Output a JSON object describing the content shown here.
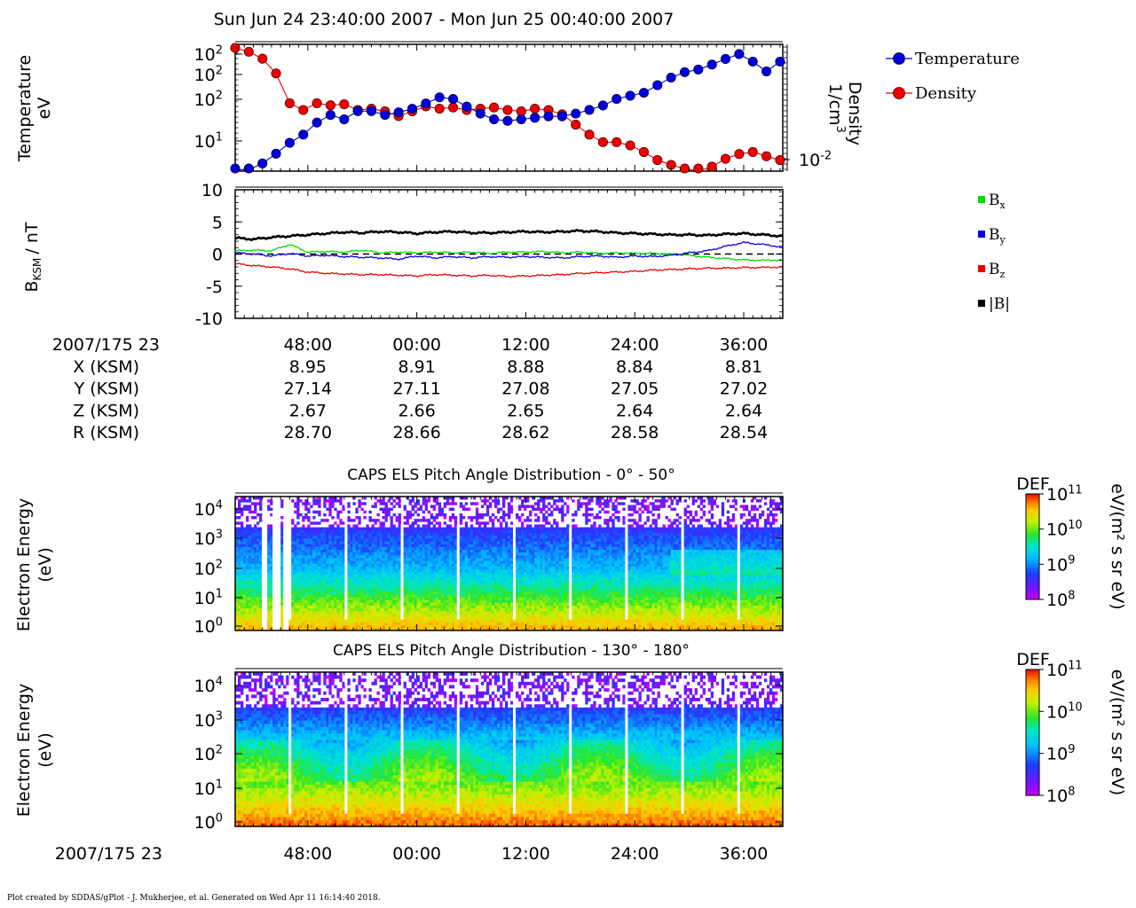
{
  "title": "Sun Jun 24 23:40:00 2007 - Mon Jun 25 00:40:00 2007",
  "footer": "Plot created by SDDAS/gPlot - J. Mukherjee, et al.  Generated on Wed Apr 11 16:14:40 2018.",
  "colors": {
    "temperature": "#0000dd",
    "density": "#ee0000",
    "bx": "#00dd00",
    "by": "#0000ee",
    "bz": "#ee0000",
    "btot": "#000000"
  },
  "ephemeris": {
    "start_label": "2007/175 23",
    "rows": [
      {
        "label": "X (KSM)",
        "values": [
          "8.95",
          "8.91",
          "8.88",
          "8.84",
          "8.81"
        ]
      },
      {
        "label": "Y (KSM)",
        "values": [
          "27.14",
          "27.11",
          "27.08",
          "27.05",
          "27.02"
        ]
      },
      {
        "label": "Z (KSM)",
        "values": [
          "2.67",
          "2.66",
          "2.65",
          "2.64",
          "2.64"
        ]
      },
      {
        "label": "R (KSM)",
        "values": [
          "28.70",
          "28.66",
          "28.62",
          "28.58",
          "28.54"
        ]
      }
    ]
  },
  "bottom_axis": {
    "start_label": "2007/175 23"
  },
  "chart_data": [
    {
      "type": "line",
      "title": "",
      "ylabel": "Temperature",
      "ylabel_unit": "eV",
      "y2label": "Density",
      "y2label_unit": "1/cm",
      "y2label_unit_exp": "3",
      "yscale": "log",
      "y_ticks": [
        {
          "base": "10",
          "exp": "2"
        },
        {
          "base": "10",
          "exp": "2"
        },
        {
          "base": "10",
          "exp": "2"
        },
        {
          "base": "10",
          "exp": "1"
        }
      ],
      "y2_ticks": [
        {
          "base": "10",
          "exp": "-2"
        }
      ],
      "x_ticks": [
        "48:00",
        "00:00",
        "12:00",
        "24:00",
        "36:00"
      ],
      "x_range_minutes": [
        40,
        100.3
      ],
      "legend_position": "right",
      "series": [
        {
          "name": "Temperature",
          "x_minutes": [
            40,
            41.5,
            43,
            44.5,
            46,
            47.5,
            49,
            50.5,
            52,
            53.5,
            55,
            56.5,
            58,
            59.5,
            61,
            62.5,
            64,
            65.5,
            67,
            68.5,
            70,
            71.5,
            73,
            74.5,
            76,
            77.5,
            79,
            80.5,
            82,
            83.5,
            85,
            86.5,
            88,
            89.5,
            91,
            92.5,
            94,
            95.5,
            97,
            98.5,
            100
          ],
          "temperature_eV": [
            5,
            5,
            6,
            8,
            11,
            14,
            20,
            25,
            22,
            28,
            28,
            25,
            27,
            30,
            35,
            42,
            40,
            32,
            26,
            22,
            21,
            22,
            23,
            24,
            24,
            26,
            29,
            33,
            40,
            44,
            48,
            60,
            75,
            88,
            95,
            110,
            130,
            150,
            120,
            90,
            120
          ]
        },
        {
          "name": "Density",
          "x_minutes": [
            40,
            41.5,
            43,
            44.5,
            46,
            47.5,
            49,
            50.5,
            52,
            53.5,
            55,
            56.5,
            58,
            59.5,
            61,
            62.5,
            64,
            65.5,
            67,
            68.5,
            70,
            71.5,
            73,
            74.5,
            76,
            77.5,
            79,
            80.5,
            82,
            83.5,
            85,
            86.5,
            88,
            89.5,
            91,
            92.5,
            94,
            95.5,
            97,
            98.5,
            100
          ],
          "density_cm3": [
            3.0,
            2.5,
            1.8,
            0.9,
            0.22,
            0.16,
            0.22,
            0.2,
            0.21,
            0.16,
            0.17,
            0.15,
            0.12,
            0.15,
            0.19,
            0.17,
            0.18,
            0.16,
            0.17,
            0.18,
            0.16,
            0.15,
            0.17,
            0.16,
            0.13,
            0.08,
            0.05,
            0.035,
            0.035,
            0.03,
            0.022,
            0.015,
            0.012,
            0.01,
            0.009,
            0.011,
            0.016,
            0.02,
            0.022,
            0.018,
            0.015
          ]
        }
      ]
    },
    {
      "type": "line",
      "title": "",
      "ylabel": "B",
      "ylabel_sub": "KSM",
      "ylabel_unit": "/ nT",
      "ylim": [
        -10,
        10
      ],
      "y_ticks": [
        "10",
        "5",
        "0",
        "-5",
        "-10"
      ],
      "x_ticks": [
        "48:00",
        "00:00",
        "12:00",
        "24:00",
        "36:00"
      ],
      "x_range_minutes": [
        40,
        100.3
      ],
      "zero_line": "dashed",
      "legend_position": "right",
      "series": [
        {
          "name": "B",
          "sub": "x",
          "color_key": "bx",
          "x_minutes": [
            40,
            42,
            44,
            46,
            48,
            50,
            52,
            54,
            56,
            58,
            60,
            62,
            64,
            66,
            68,
            70,
            72,
            74,
            76,
            78,
            80,
            82,
            84,
            86,
            88,
            90,
            92,
            94,
            96,
            98,
            100.3
          ],
          "values": [
            0.5,
            0.6,
            0.5,
            1.5,
            0.3,
            0.4,
            0.3,
            0.6,
            0.2,
            0.3,
            0.2,
            0.3,
            0.2,
            0.3,
            0.1,
            0.3,
            0.3,
            0.4,
            0.2,
            0.3,
            0.1,
            0.2,
            0.1,
            0.1,
            0.0,
            -0.2,
            -0.5,
            -0.7,
            -0.9,
            -1.0,
            -0.9
          ]
        },
        {
          "name": "B",
          "sub": "y",
          "color_key": "by",
          "x_minutes": [
            40,
            42,
            44,
            46,
            48,
            50,
            52,
            54,
            56,
            58,
            60,
            62,
            64,
            66,
            68,
            70,
            72,
            74,
            76,
            78,
            80,
            82,
            84,
            86,
            88,
            90,
            92,
            94,
            96,
            98,
            100.3
          ],
          "values": [
            0.2,
            0.0,
            -0.3,
            0.1,
            -0.3,
            -0.2,
            -0.4,
            -0.5,
            -0.6,
            -0.8,
            -0.3,
            -0.6,
            -0.4,
            -0.6,
            -0.4,
            -0.5,
            -0.4,
            -0.5,
            -0.6,
            -0.4,
            -0.3,
            -0.5,
            -0.3,
            -0.4,
            -0.2,
            0.2,
            0.5,
            1.2,
            1.8,
            1.5,
            1.1
          ]
        },
        {
          "name": "B",
          "sub": "z",
          "color_key": "bz",
          "x_minutes": [
            40,
            42,
            44,
            46,
            48,
            50,
            52,
            54,
            56,
            58,
            60,
            62,
            64,
            66,
            68,
            70,
            72,
            74,
            76,
            78,
            80,
            82,
            84,
            86,
            88,
            90,
            92,
            94,
            96,
            98,
            100.3
          ],
          "values": [
            -1.5,
            -1.8,
            -2.0,
            -2.3,
            -2.8,
            -3.0,
            -3.1,
            -3.2,
            -3.2,
            -3.3,
            -3.4,
            -3.2,
            -3.3,
            -3.4,
            -3.3,
            -3.5,
            -3.4,
            -3.3,
            -3.2,
            -3.0,
            -2.9,
            -2.8,
            -2.7,
            -2.5,
            -2.4,
            -2.3,
            -2.2,
            -2.2,
            -2.1,
            -2.1,
            -2.0
          ]
        },
        {
          "name": "|B|",
          "sub": "",
          "color_key": "btot",
          "x_minutes": [
            40,
            42,
            44,
            46,
            48,
            50,
            52,
            54,
            56,
            58,
            60,
            62,
            64,
            66,
            68,
            70,
            72,
            74,
            76,
            78,
            80,
            82,
            84,
            86,
            88,
            90,
            92,
            94,
            96,
            98,
            100.3
          ],
          "values": [
            2.5,
            2.3,
            2.6,
            2.8,
            3.0,
            3.2,
            3.4,
            3.3,
            3.5,
            3.4,
            3.2,
            3.4,
            3.5,
            3.3,
            3.3,
            3.4,
            3.5,
            3.4,
            3.5,
            3.6,
            3.5,
            3.3,
            3.2,
            3.1,
            3.0,
            3.0,
            2.9,
            3.1,
            3.2,
            3.0,
            2.8
          ]
        }
      ]
    },
    {
      "type": "heatmap",
      "title": "CAPS ELS Pitch Angle Distribution - 0° - 50°",
      "ylabel": "Electron Energy",
      "ylabel_unit": "(eV)",
      "yscale": "log",
      "y_ticks": [
        {
          "base": "10",
          "exp": "4"
        },
        {
          "base": "10",
          "exp": "3"
        },
        {
          "base": "10",
          "exp": "2"
        },
        {
          "base": "10",
          "exp": "1"
        },
        {
          "base": "10",
          "exp": "0"
        }
      ],
      "colorbar": {
        "label": "DEF",
        "unit": "eV/(m² s sr eV)",
        "ticks": [
          {
            "base": "10",
            "exp": "11"
          },
          {
            "base": "10",
            "exp": "10"
          },
          {
            "base": "10",
            "exp": "9"
          },
          {
            "base": "10",
            "exp": "8"
          }
        ]
      },
      "energy_log10_profile": [
        0,
        1,
        2,
        3,
        4.3
      ],
      "log10_def_profile": [
        10.6,
        9.9,
        9.2,
        8.8,
        8.1
      ],
      "gaps_minutes": [
        43.2,
        44.6,
        45.6
      ]
    },
    {
      "type": "heatmap",
      "title": "CAPS ELS Pitch Angle Distribution - 130° - 180°",
      "ylabel": "Electron Energy",
      "ylabel_unit": "(eV)",
      "yscale": "log",
      "y_ticks": [
        {
          "base": "10",
          "exp": "4"
        },
        {
          "base": "10",
          "exp": "3"
        },
        {
          "base": "10",
          "exp": "2"
        },
        {
          "base": "10",
          "exp": "1"
        },
        {
          "base": "10",
          "exp": "0"
        }
      ],
      "colorbar": {
        "label": "DEF",
        "unit": "eV/(m² s sr eV)",
        "ticks": [
          {
            "base": "10",
            "exp": "11"
          },
          {
            "base": "10",
            "exp": "10"
          },
          {
            "base": "10",
            "exp": "9"
          },
          {
            "base": "10",
            "exp": "8"
          }
        ]
      },
      "energy_log10_profile": [
        0,
        1,
        2,
        3,
        4.3
      ],
      "log10_def_profile": [
        10.8,
        10.1,
        9.6,
        8.9,
        8.1
      ],
      "gaps_minutes": []
    }
  ]
}
